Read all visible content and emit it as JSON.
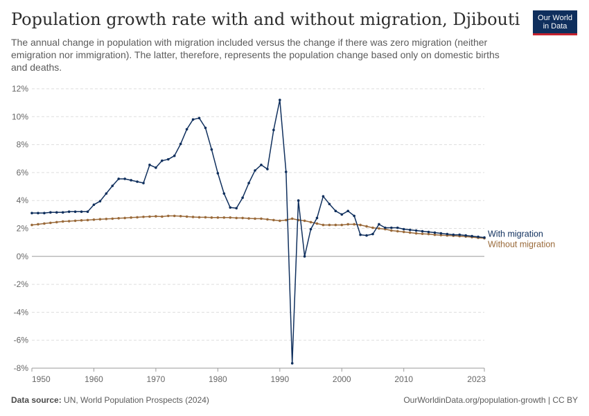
{
  "header": {
    "title": "Population growth rate with and without migration, Djibouti",
    "subtitle": "The annual change in population with migration included versus the change if there was zero migration (neither emigration nor immigration). The latter, therefore, represents the population change based only on domestic births and deaths.",
    "logo_line1": "Our World",
    "logo_line2": "in Data"
  },
  "footer": {
    "source_label": "Data source:",
    "source_text": "UN, World Population Prospects (2024)",
    "url": "OurWorldinData.org/population-growth | CC BY"
  },
  "colors": {
    "with_migration": "#0f2f5d",
    "without_migration": "#9a6a3a",
    "grid": "#dddddd",
    "axis_text": "#666666"
  },
  "chart_data": {
    "type": "line",
    "xlim": [
      1950,
      2023
    ],
    "ylim": [
      -8,
      12
    ],
    "x_ticks": [
      "1950",
      "1960",
      "1970",
      "1980",
      "1990",
      "2000",
      "2010",
      "2023"
    ],
    "y_ticks": [
      "12%",
      "10%",
      "8%",
      "6%",
      "4%",
      "2%",
      "0%",
      "-2%",
      "-4%",
      "-6%",
      "-8%"
    ],
    "grid": true,
    "legend": "inline-right",
    "x": [
      1950,
      1951,
      1952,
      1953,
      1954,
      1955,
      1956,
      1957,
      1958,
      1959,
      1960,
      1961,
      1962,
      1963,
      1964,
      1965,
      1966,
      1967,
      1968,
      1969,
      1970,
      1971,
      1972,
      1973,
      1974,
      1975,
      1976,
      1977,
      1978,
      1979,
      1980,
      1981,
      1982,
      1983,
      1984,
      1985,
      1986,
      1987,
      1988,
      1989,
      1990,
      1991,
      1992,
      1993,
      1994,
      1995,
      1996,
      1997,
      1998,
      1999,
      2000,
      2001,
      2002,
      2003,
      2004,
      2005,
      2006,
      2007,
      2008,
      2009,
      2010,
      2011,
      2012,
      2013,
      2014,
      2015,
      2016,
      2017,
      2018,
      2019,
      2020,
      2021,
      2022,
      2023
    ],
    "series": [
      {
        "name": "With migration",
        "values": [
          3.1,
          3.1,
          3.1,
          3.15,
          3.15,
          3.15,
          3.2,
          3.2,
          3.2,
          3.2,
          3.7,
          3.95,
          4.5,
          5.05,
          5.55,
          5.55,
          5.45,
          5.35,
          5.25,
          6.55,
          6.35,
          6.85,
          6.95,
          7.2,
          8.05,
          9.1,
          9.8,
          9.9,
          9.2,
          7.65,
          5.95,
          4.5,
          3.5,
          3.45,
          4.2,
          5.25,
          6.15,
          6.55,
          6.25,
          9.05,
          11.2,
          6.05,
          -7.65,
          4.0,
          0.0,
          1.95,
          2.75,
          4.3,
          3.75,
          3.25,
          3.0,
          3.25,
          2.9,
          1.55,
          1.5,
          1.6,
          2.3,
          2.05,
          2.05,
          2.05,
          1.95,
          1.9,
          1.85,
          1.8,
          1.75,
          1.7,
          1.65,
          1.6,
          1.55,
          1.55,
          1.5,
          1.45,
          1.4,
          1.35
        ]
      },
      {
        "name": "Without migration",
        "values": [
          2.25,
          2.3,
          2.35,
          2.4,
          2.45,
          2.5,
          2.52,
          2.55,
          2.58,
          2.6,
          2.63,
          2.66,
          2.68,
          2.7,
          2.73,
          2.75,
          2.78,
          2.8,
          2.83,
          2.85,
          2.87,
          2.85,
          2.9,
          2.9,
          2.88,
          2.85,
          2.82,
          2.8,
          2.8,
          2.78,
          2.78,
          2.78,
          2.78,
          2.75,
          2.75,
          2.72,
          2.7,
          2.7,
          2.65,
          2.6,
          2.55,
          2.6,
          2.7,
          2.6,
          2.55,
          2.45,
          2.35,
          2.25,
          2.25,
          2.25,
          2.25,
          2.3,
          2.3,
          2.25,
          2.15,
          2.05,
          2.0,
          1.95,
          1.85,
          1.8,
          1.75,
          1.7,
          1.65,
          1.62,
          1.6,
          1.55,
          1.52,
          1.5,
          1.48,
          1.45,
          1.42,
          1.38,
          1.33,
          1.3
        ]
      }
    ]
  }
}
